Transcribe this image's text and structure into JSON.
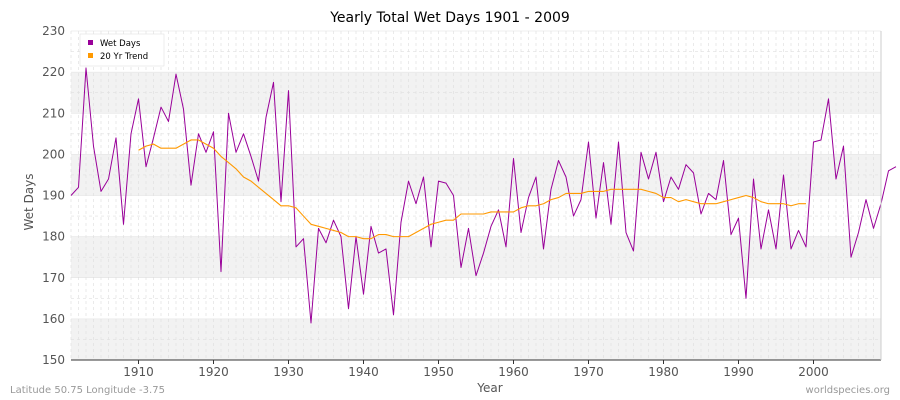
{
  "chart_data": {
    "type": "line",
    "title": "Yearly Total Wet Days 1901 - 2009",
    "xlabel": "Year",
    "ylabel": "Wet Days",
    "xlim": [
      1901,
      2009
    ],
    "ylim": [
      150,
      230
    ],
    "xticks": [
      1910,
      1920,
      1930,
      1940,
      1950,
      1960,
      1970,
      1980,
      1990,
      2000
    ],
    "yticks": [
      150,
      160,
      170,
      180,
      190,
      200,
      210,
      220,
      230
    ],
    "grid": true,
    "legend_position": "top-left",
    "series": [
      {
        "name": "Wet Days",
        "color": "#990099",
        "x_start": 1901,
        "values": [
          190,
          192,
          221,
          202,
          191,
          194,
          204,
          183,
          205,
          213.5,
          197,
          204,
          211.5,
          208,
          219.5,
          211,
          192.5,
          205,
          200.5,
          205.5,
          171.5,
          210,
          200.5,
          205,
          199.5,
          193.5,
          209,
          217.5,
          188.5,
          215.5,
          177.5,
          179.5,
          159,
          182,
          178.5,
          184,
          180,
          162.5,
          180,
          166,
          182.5,
          176,
          177,
          161,
          183.5,
          193.5,
          188,
          194.5,
          177.5,
          193.5,
          193,
          190,
          172.5,
          182,
          170.5,
          176,
          182.5,
          186.5,
          177.5,
          199,
          181,
          189.5,
          194.5,
          177,
          191.5,
          198.5,
          194.5,
          185,
          189,
          203,
          184.5,
          198,
          183,
          203,
          181,
          176.5,
          200.5,
          194,
          200.5,
          188.5,
          194.5,
          191.5,
          197.5,
          195.5,
          185.5,
          190.5,
          189,
          198.5,
          180.5,
          184.5,
          165,
          194,
          177,
          186.5,
          177,
          195,
          177,
          181.5,
          177.5,
          203,
          203.5,
          213.5,
          194,
          202,
          175,
          181,
          189,
          182,
          188,
          196,
          197
        ]
      },
      {
        "name": "20 Yr Trend",
        "color": "#ff9900",
        "x_start": 1910,
        "values": [
          201,
          202,
          202.5,
          201.5,
          201.5,
          201.5,
          202.5,
          203.5,
          203.5,
          202.5,
          201.5,
          199.5,
          198,
          196.5,
          194.5,
          193.5,
          192,
          190.5,
          189,
          187.5,
          187.5,
          187,
          185,
          183,
          182.5,
          182,
          181.5,
          181,
          180,
          180,
          179.5,
          179.5,
          180.5,
          180.5,
          180,
          180,
          180,
          181,
          182,
          183,
          183.5,
          184,
          184,
          185.5,
          185.5,
          185.5,
          185.5,
          186,
          186,
          186,
          186,
          187,
          187.5,
          187.5,
          188,
          189,
          189.5,
          190.5,
          190.5,
          190.5,
          191,
          191,
          191,
          191.5,
          191.5,
          191.5,
          191.5,
          191.5,
          191,
          190.5,
          189.5,
          189.5,
          188.5,
          189,
          188.5,
          188,
          188,
          188,
          188.5,
          189,
          189.5,
          190,
          189.5,
          188.5,
          188,
          188,
          188,
          187.5,
          188,
          188
        ]
      }
    ]
  },
  "footer": {
    "left": "Latitude 50.75 Longitude -3.75",
    "right": "worldspecies.org"
  }
}
